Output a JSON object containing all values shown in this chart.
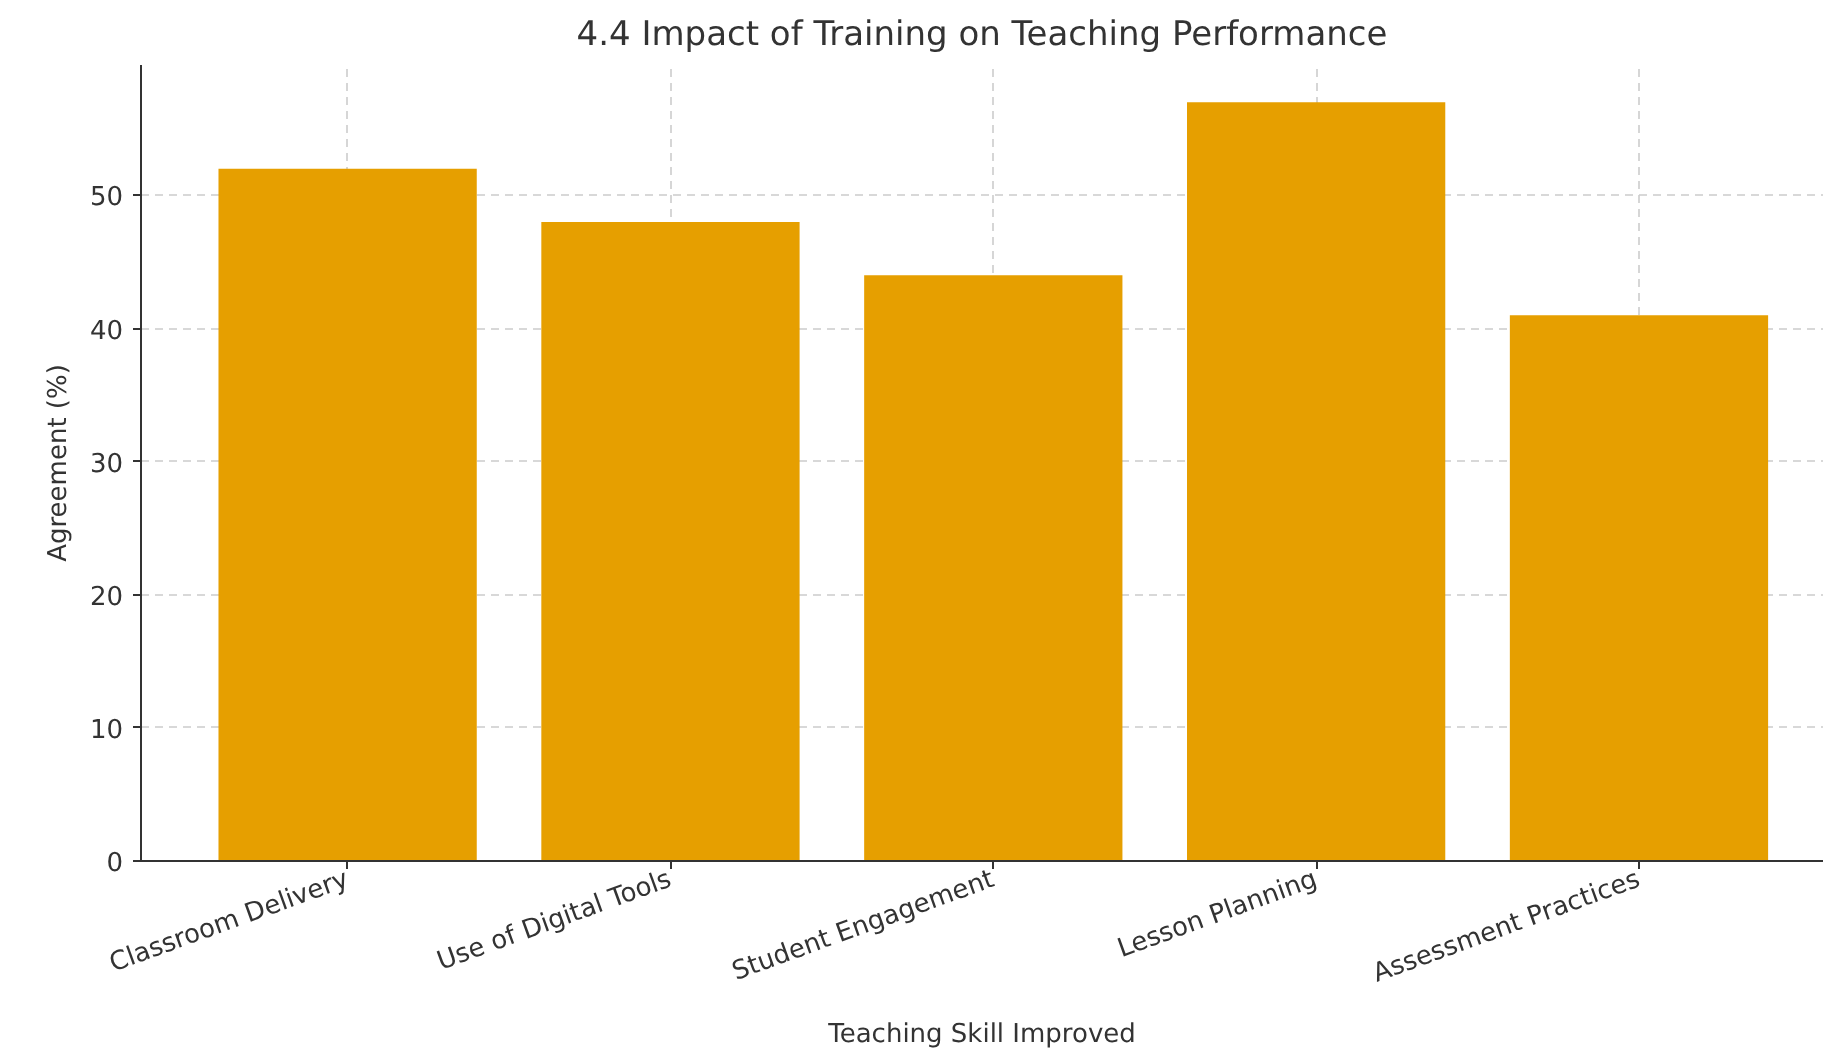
{
  "chart_data": {
    "type": "bar",
    "title": "4.4 Impact of Training on Teaching Performance",
    "xlabel": "Teaching Skill Improved",
    "ylabel": "Agreement (%)",
    "categories": [
      "Classroom Delivery",
      "Use of Digital Tools",
      "Student Engagement",
      "Lesson Planning",
      "Assessment Practices"
    ],
    "values": [
      52,
      48,
      44,
      57,
      41
    ],
    "color": "#e69f00",
    "ylim": [
      0,
      59.8
    ],
    "yticks": [
      0,
      10,
      20,
      30,
      40,
      50
    ],
    "grid": true
  }
}
